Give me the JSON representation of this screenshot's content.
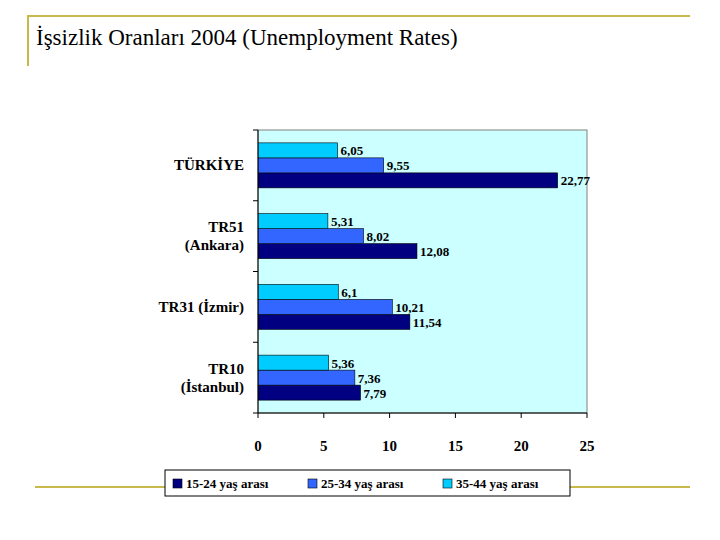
{
  "chart_data": {
    "type": "bar",
    "title": "İşsizlik Oranları 2004 (Unemployment Rates)",
    "orientation": "horizontal",
    "categories": [
      "TÜRKİYE",
      "TR51\n(Ankara)",
      "TR31 (İzmir)",
      "TR10\n(İstanbul)"
    ],
    "series": [
      {
        "name": "15-24 yaş arası",
        "color": "#000080",
        "values": [
          22.77,
          12.08,
          11.54,
          7.79
        ],
        "value_labels": [
          "22,77",
          "12,08",
          "11,54",
          "7,79"
        ]
      },
      {
        "name": "25-34 yaş arası",
        "color": "#3366ff",
        "values": [
          9.55,
          8.02,
          10.21,
          7.36
        ],
        "value_labels": [
          "9,55",
          "8,02",
          "10,21",
          "7,36"
        ]
      },
      {
        "name": "35-44 yaş arası",
        "color": "#00ccff",
        "values": [
          6.05,
          5.31,
          6.1,
          5.36
        ],
        "value_labels": [
          "6,05",
          "5,31",
          "6,1",
          "5,36"
        ]
      }
    ],
    "xlim": [
      0,
      25
    ],
    "xticks": [
      0,
      5,
      10,
      15,
      20,
      25
    ],
    "data_labels": true,
    "legend": "bottom",
    "grid": false
  }
}
